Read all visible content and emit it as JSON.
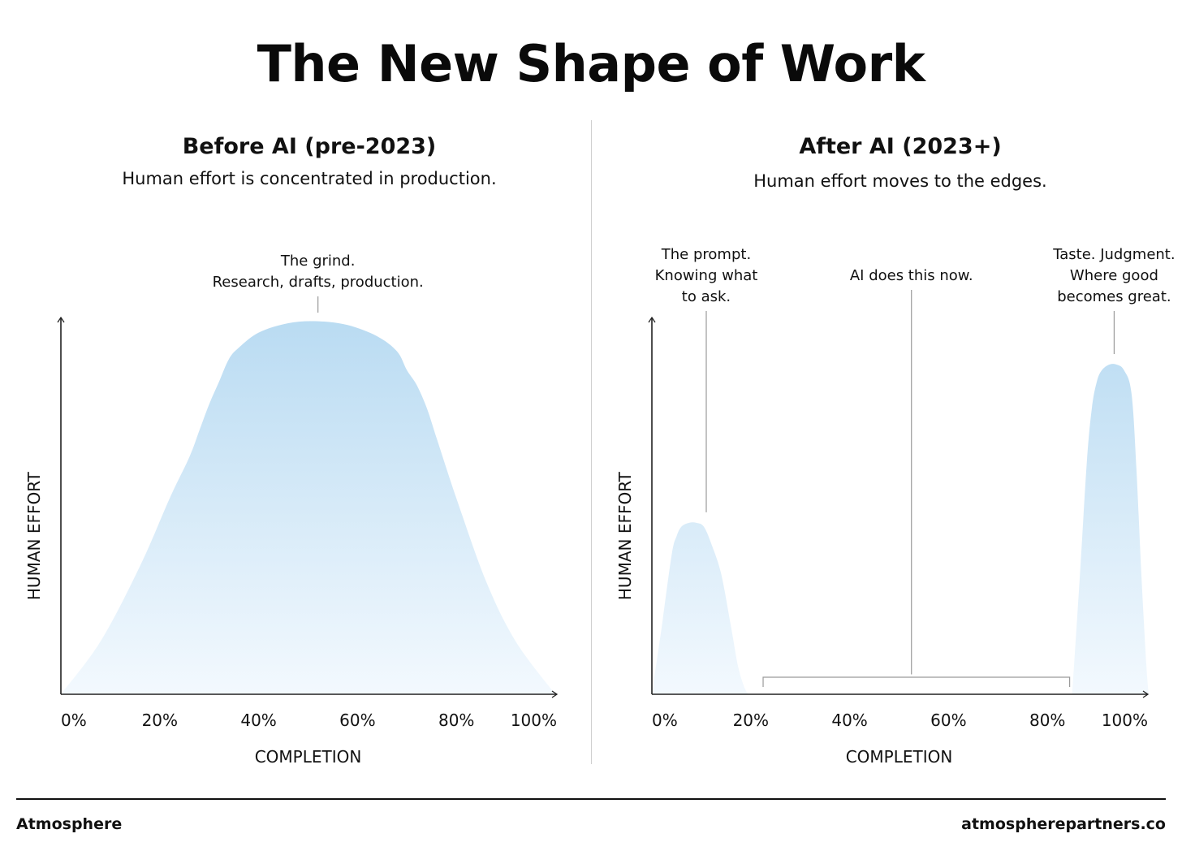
{
  "title": "The New Shape of Work",
  "colors": {
    "fill_top": "#b9dbf2",
    "fill_bottom": "#f3f9fe",
    "axis": "#222222",
    "leader": "#9a9a9a",
    "text": "#111111"
  },
  "panels": [
    {
      "title": "Before AI (pre-2023)",
      "subtitle": "Human effort is concentrated in production."
    },
    {
      "title": "After AI (2023+)",
      "subtitle": "Human effort moves to the edges."
    }
  ],
  "chart_data": [
    {
      "type": "area",
      "xlabel": "COMPLETION",
      "ylabel": "HUMAN EFFORT",
      "x_ticks": [
        "0%",
        "20%",
        "40%",
        "60%",
        "80%",
        "100%"
      ],
      "xlim": [
        0,
        100
      ],
      "ylim": [
        0,
        100
      ],
      "grid": false,
      "series": [
        {
          "x": [
            0,
            8,
            16,
            22,
            26,
            28,
            30,
            32,
            34,
            36,
            40,
            46,
            52,
            58,
            64,
            68,
            70,
            72,
            74,
            76,
            80,
            86,
            92,
            100
          ],
          "y": [
            0,
            14,
            34,
            52,
            63,
            70,
            77,
            83,
            89,
            92,
            96,
            98.5,
            99,
            98,
            95,
            91,
            86,
            82,
            76,
            68,
            52,
            30,
            14,
            0
          ]
        }
      ],
      "annotations": [
        {
          "x": 52,
          "y": 100,
          "lines": [
            "The grind.",
            "Research, drafts, production."
          ]
        }
      ]
    },
    {
      "type": "area",
      "xlabel": "COMPLETION",
      "ylabel": "HUMAN EFFORT",
      "x_ticks": [
        "0%",
        "20%",
        "40%",
        "60%",
        "80%",
        "100%"
      ],
      "xlim": [
        0,
        100
      ],
      "ylim": [
        0,
        100
      ],
      "grid": false,
      "series": [
        {
          "x": [
            0,
            2,
            4,
            5,
            6,
            7.5,
            9,
            10.5,
            12,
            14,
            16,
            17.5,
            19,
            20
          ],
          "y": [
            0,
            18,
            37,
            42,
            44.5,
            45.5,
            45.5,
            44.5,
            40,
            32,
            18,
            7,
            1,
            0
          ]
        },
        {
          "x": [
            85,
            86.5,
            88,
            89,
            90,
            91,
            92.5,
            94,
            95.5,
            97,
            98,
            99,
            100,
            100.5
          ],
          "y": [
            0,
            30,
            62,
            76,
            83,
            86,
            87.5,
            87.5,
            86,
            80,
            60,
            32,
            8,
            0
          ]
        }
      ],
      "bracket": {
        "x_start": 22.5,
        "x_end": 84.5
      },
      "annotations": [
        {
          "x": 11,
          "y": 47,
          "lines": [
            "The prompt.",
            "Knowing what",
            "to ask."
          ]
        },
        {
          "x": 52.5,
          "y": 4,
          "lines": [
            "AI does this now."
          ]
        },
        {
          "x": 93.5,
          "y": 89,
          "lines": [
            "Taste. Judgment.",
            "Where good",
            "becomes great."
          ]
        }
      ]
    }
  ],
  "footer": {
    "brand": "Atmosphere",
    "url": "atmospherepartners.co"
  }
}
